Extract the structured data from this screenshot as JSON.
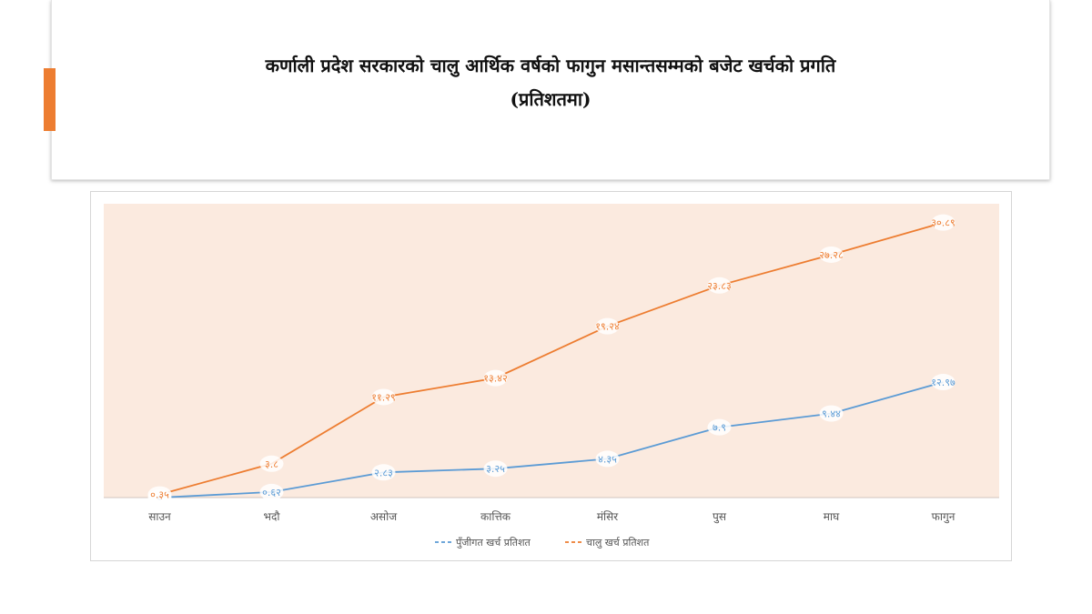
{
  "slide": {
    "title_line1": "कर्णाली प्रदेश सरकारको चालु आर्थिक वर्षको फागुन मसान्तसम्मको बजेट खर्चको प्रगति",
    "title_line2": "(प्रतिशतमा)",
    "accent_color": "#ED7D31"
  },
  "chart_data": {
    "type": "line",
    "title": "",
    "xlabel": "",
    "ylabel": "",
    "categories": [
      "साउन",
      "भदौ",
      "असोज",
      "कात्तिक",
      "मंसिर",
      "पुस",
      "माघ",
      "फागुन"
    ],
    "series": [
      {
        "name": "पुँजीगत खर्च प्रतिशत",
        "color": "#5B9BD5",
        "values": [
          0,
          0.62,
          2.83,
          3.25,
          4.35,
          7.9,
          9.44,
          12.97
        ],
        "labels": [
          "०",
          "०.६२",
          "२.८३",
          "३.२५",
          "४.३५",
          "७.९",
          "९.४४",
          "१२.९७"
        ]
      },
      {
        "name": "चालु खर्च प्रतिशत",
        "color": "#ED7D31",
        "values": [
          0.35,
          3.8,
          11.29,
          13.42,
          19.24,
          23.83,
          27.28,
          30.89
        ],
        "labels": [
          "०.३५",
          "३.८",
          "११.२९",
          "१३.४२",
          "१९.२४",
          "२३.८३",
          "२७.२८",
          "३०.८९"
        ]
      }
    ],
    "ylim": [
      0,
      33
    ],
    "plot_background": "#FBEADF",
    "grid": false,
    "legend_position": "bottom"
  }
}
